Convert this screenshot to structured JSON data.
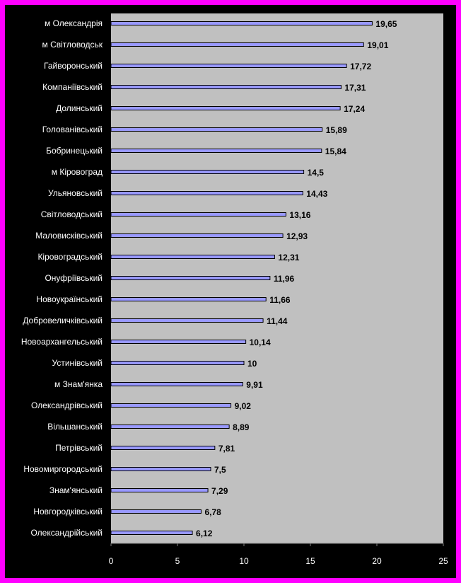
{
  "colors": {
    "frame": "#ff00ff",
    "background": "#000000",
    "plot_area": "#c0c0c0",
    "bar_fill": "#9999ff",
    "bar_edge": "#000000",
    "category_text": "#ffffff",
    "value_text": "#000000",
    "tick_text": "#ffffff"
  },
  "chart_data": {
    "type": "bar",
    "orientation": "horizontal",
    "title": "",
    "xlabel": "",
    "ylabel": "",
    "xlim": [
      0,
      25
    ],
    "x_ticks": [
      0,
      5,
      10,
      15,
      20,
      25
    ],
    "grid": false,
    "legend": "none",
    "categories": [
      "м Олександрія",
      "м Світловодськ",
      "Гайворонський",
      "Компаніївський",
      "Долинський",
      "Голованівський",
      "Бобринецький",
      "м Кіровоград",
      "Ульяновський",
      "Світловодський",
      "Маловисківський",
      "Кіровоградський",
      "Онуфріївський",
      "Новоукраїнський",
      "Добровеличківський",
      "Новоархангельський",
      "Устинівський",
      "м Знам'янка",
      "Олександрівський",
      "Вільшанський",
      "Петрівський",
      "Новомиргородський",
      "Знам'янський",
      "Новгородківський",
      "Олександрійський"
    ],
    "values": [
      19.65,
      19.01,
      17.72,
      17.31,
      17.24,
      15.89,
      15.84,
      14.5,
      14.43,
      13.16,
      12.93,
      12.31,
      11.96,
      11.66,
      11.44,
      10.14,
      10,
      9.91,
      9.02,
      8.89,
      7.81,
      7.5,
      7.29,
      6.78,
      6.12
    ],
    "value_labels": [
      "19,65",
      "19,01",
      "17,72",
      "17,31",
      "17,24",
      "15,89",
      "15,84",
      "14,5",
      "14,43",
      "13,16",
      "12,93",
      "12,31",
      "11,96",
      "11,66",
      "11,44",
      "10,14",
      "10",
      "9,91",
      "9,02",
      "8,89",
      "7,81",
      "7,5",
      "7,29",
      "6,78",
      "6,12"
    ]
  }
}
